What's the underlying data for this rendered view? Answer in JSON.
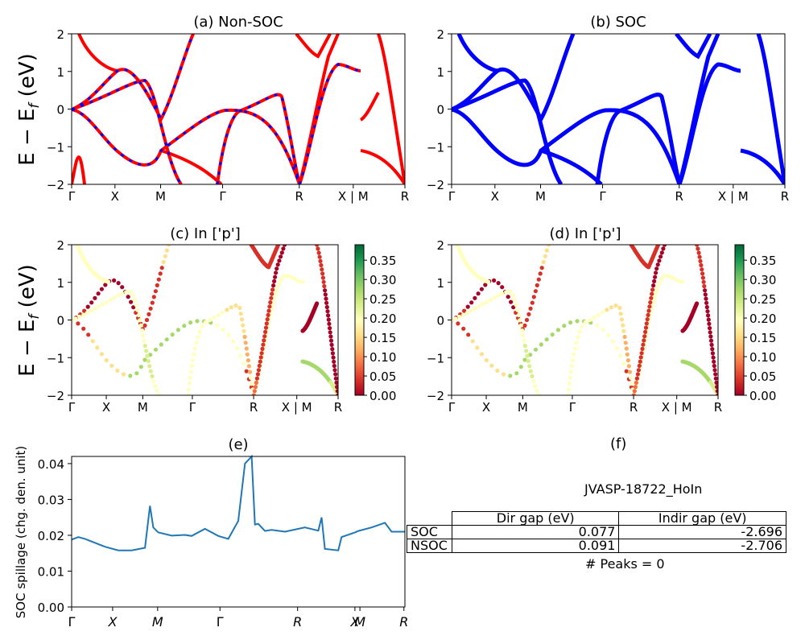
{
  "ylabel_top": "E − E_f (eV)",
  "chart_data": [
    {
      "id": "a",
      "type": "line",
      "title": "(a) Non-SOC",
      "ylim": [
        -2,
        2
      ],
      "yticks": [
        "2",
        "1",
        "0",
        "−1",
        "−2"
      ],
      "xticks": [
        "Γ",
        "X",
        "M",
        "Γ",
        "R",
        "X | M",
        "R"
      ],
      "xtick_pos": [
        0,
        0.13,
        0.267,
        0.453,
        0.683,
        0.845,
        1.0
      ],
      "series": [
        {
          "color": "#ff0000",
          "style": "solid",
          "points": [
            [
              0,
              0
            ],
            [
              0.05,
              -0.1
            ],
            [
              0.13,
              -0.9
            ],
            [
              0.2,
              -1.5
            ],
            [
              0.267,
              -1.1
            ]
          ]
        },
        {
          "color": "#0000ff",
          "style": "dashed",
          "points": [
            [
              0,
              0
            ],
            [
              0.05,
              -0.1
            ],
            [
              0.13,
              -0.9
            ],
            [
              0.2,
              -1.5
            ],
            [
              0.267,
              -1.1
            ]
          ]
        }
      ]
    },
    {
      "id": "b",
      "type": "line",
      "title": "(b) SOC",
      "ylim": [
        -2,
        2
      ],
      "yticks": [
        "2",
        "1",
        "0",
        "−1",
        "−2"
      ],
      "xticks": [
        "Γ",
        "X",
        "M",
        "Γ",
        "R",
        "X | M",
        "R"
      ],
      "xtick_pos": [
        0,
        0.13,
        0.267,
        0.453,
        0.683,
        0.845,
        1.0
      ]
    },
    {
      "id": "c",
      "type": "scatter",
      "title": "(c)  In ['p']",
      "ylim": [
        -2,
        2
      ],
      "yticks": [
        "2",
        "1",
        "0",
        "−1",
        "−2"
      ],
      "xticks": [
        "Γ",
        "X",
        "M",
        "Γ",
        "R",
        "X | M",
        "R"
      ],
      "xtick_pos": [
        0,
        0.13,
        0.267,
        0.453,
        0.683,
        0.845,
        1.0
      ],
      "colorbar": {
        "min": 0.0,
        "max": 0.39,
        "ticks": [
          "0.35",
          "0.30",
          "0.25",
          "0.20",
          "0.15",
          "0.10",
          "0.05",
          "0.00"
        ],
        "cmap": "RdYlGn"
      }
    },
    {
      "id": "d",
      "type": "scatter",
      "title": "(d) In ['p']",
      "ylim": [
        -2,
        2
      ],
      "yticks": [
        "2",
        "1",
        "0",
        "−1",
        "−2"
      ],
      "xticks": [
        "Γ",
        "X",
        "M",
        "Γ",
        "R",
        "X | M",
        "R"
      ],
      "xtick_pos": [
        0,
        0.13,
        0.267,
        0.453,
        0.683,
        0.845,
        1.0
      ],
      "colorbar": {
        "min": 0.0,
        "max": 0.39,
        "ticks": [
          "0.35",
          "0.30",
          "0.25",
          "0.20",
          "0.15",
          "0.10",
          "0.05",
          "0.00"
        ],
        "cmap": "RdYlGn"
      }
    },
    {
      "id": "e",
      "type": "line",
      "title": "(e)",
      "ylabel": "SOC spillage (chg. den. unit)",
      "ylim": [
        0,
        0.042
      ],
      "yticks": [
        "0.04",
        "0.03",
        "0.02",
        "0.01",
        "0.00"
      ],
      "xticks": [
        "Γ",
        "X",
        "M",
        "Γ",
        "R",
        "X",
        "M",
        "R"
      ],
      "color": "#1f77b4",
      "x": [
        0,
        0.02,
        0.04,
        0.1,
        0.14,
        0.18,
        0.22,
        0.235,
        0.245,
        0.26,
        0.3,
        0.34,
        0.36,
        0.4,
        0.44,
        0.47,
        0.5,
        0.52,
        0.54,
        0.55,
        0.56,
        0.58,
        0.6,
        0.64,
        0.7,
        0.74,
        0.75,
        0.76,
        0.8,
        0.81,
        0.85,
        0.86,
        0.9,
        0.94,
        0.96,
        1.0
      ],
      "values": [
        0.0188,
        0.0195,
        0.019,
        0.0168,
        0.0158,
        0.0158,
        0.0165,
        0.0282,
        0.0222,
        0.0208,
        0.0199,
        0.0201,
        0.0198,
        0.0218,
        0.0198,
        0.019,
        0.024,
        0.04,
        0.042,
        0.023,
        0.0232,
        0.0212,
        0.0215,
        0.021,
        0.0222,
        0.0213,
        0.025,
        0.0162,
        0.0158,
        0.0195,
        0.0208,
        0.0212,
        0.0222,
        0.0235,
        0.021,
        0.021
      ]
    }
  ],
  "panel_f": {
    "title": "(f)",
    "subtitle": "JVASP-18722_HoIn",
    "table": {
      "headers": [
        "Dir gap (eV)",
        "Indir gap (eV)"
      ],
      "rows": [
        {
          "label": "SOC",
          "dir": "0.077",
          "indir": "-2.696"
        },
        {
          "label": "NSOC",
          "dir": "0.091",
          "indir": "-2.706"
        }
      ]
    },
    "peaks": "# Peaks = 0"
  }
}
